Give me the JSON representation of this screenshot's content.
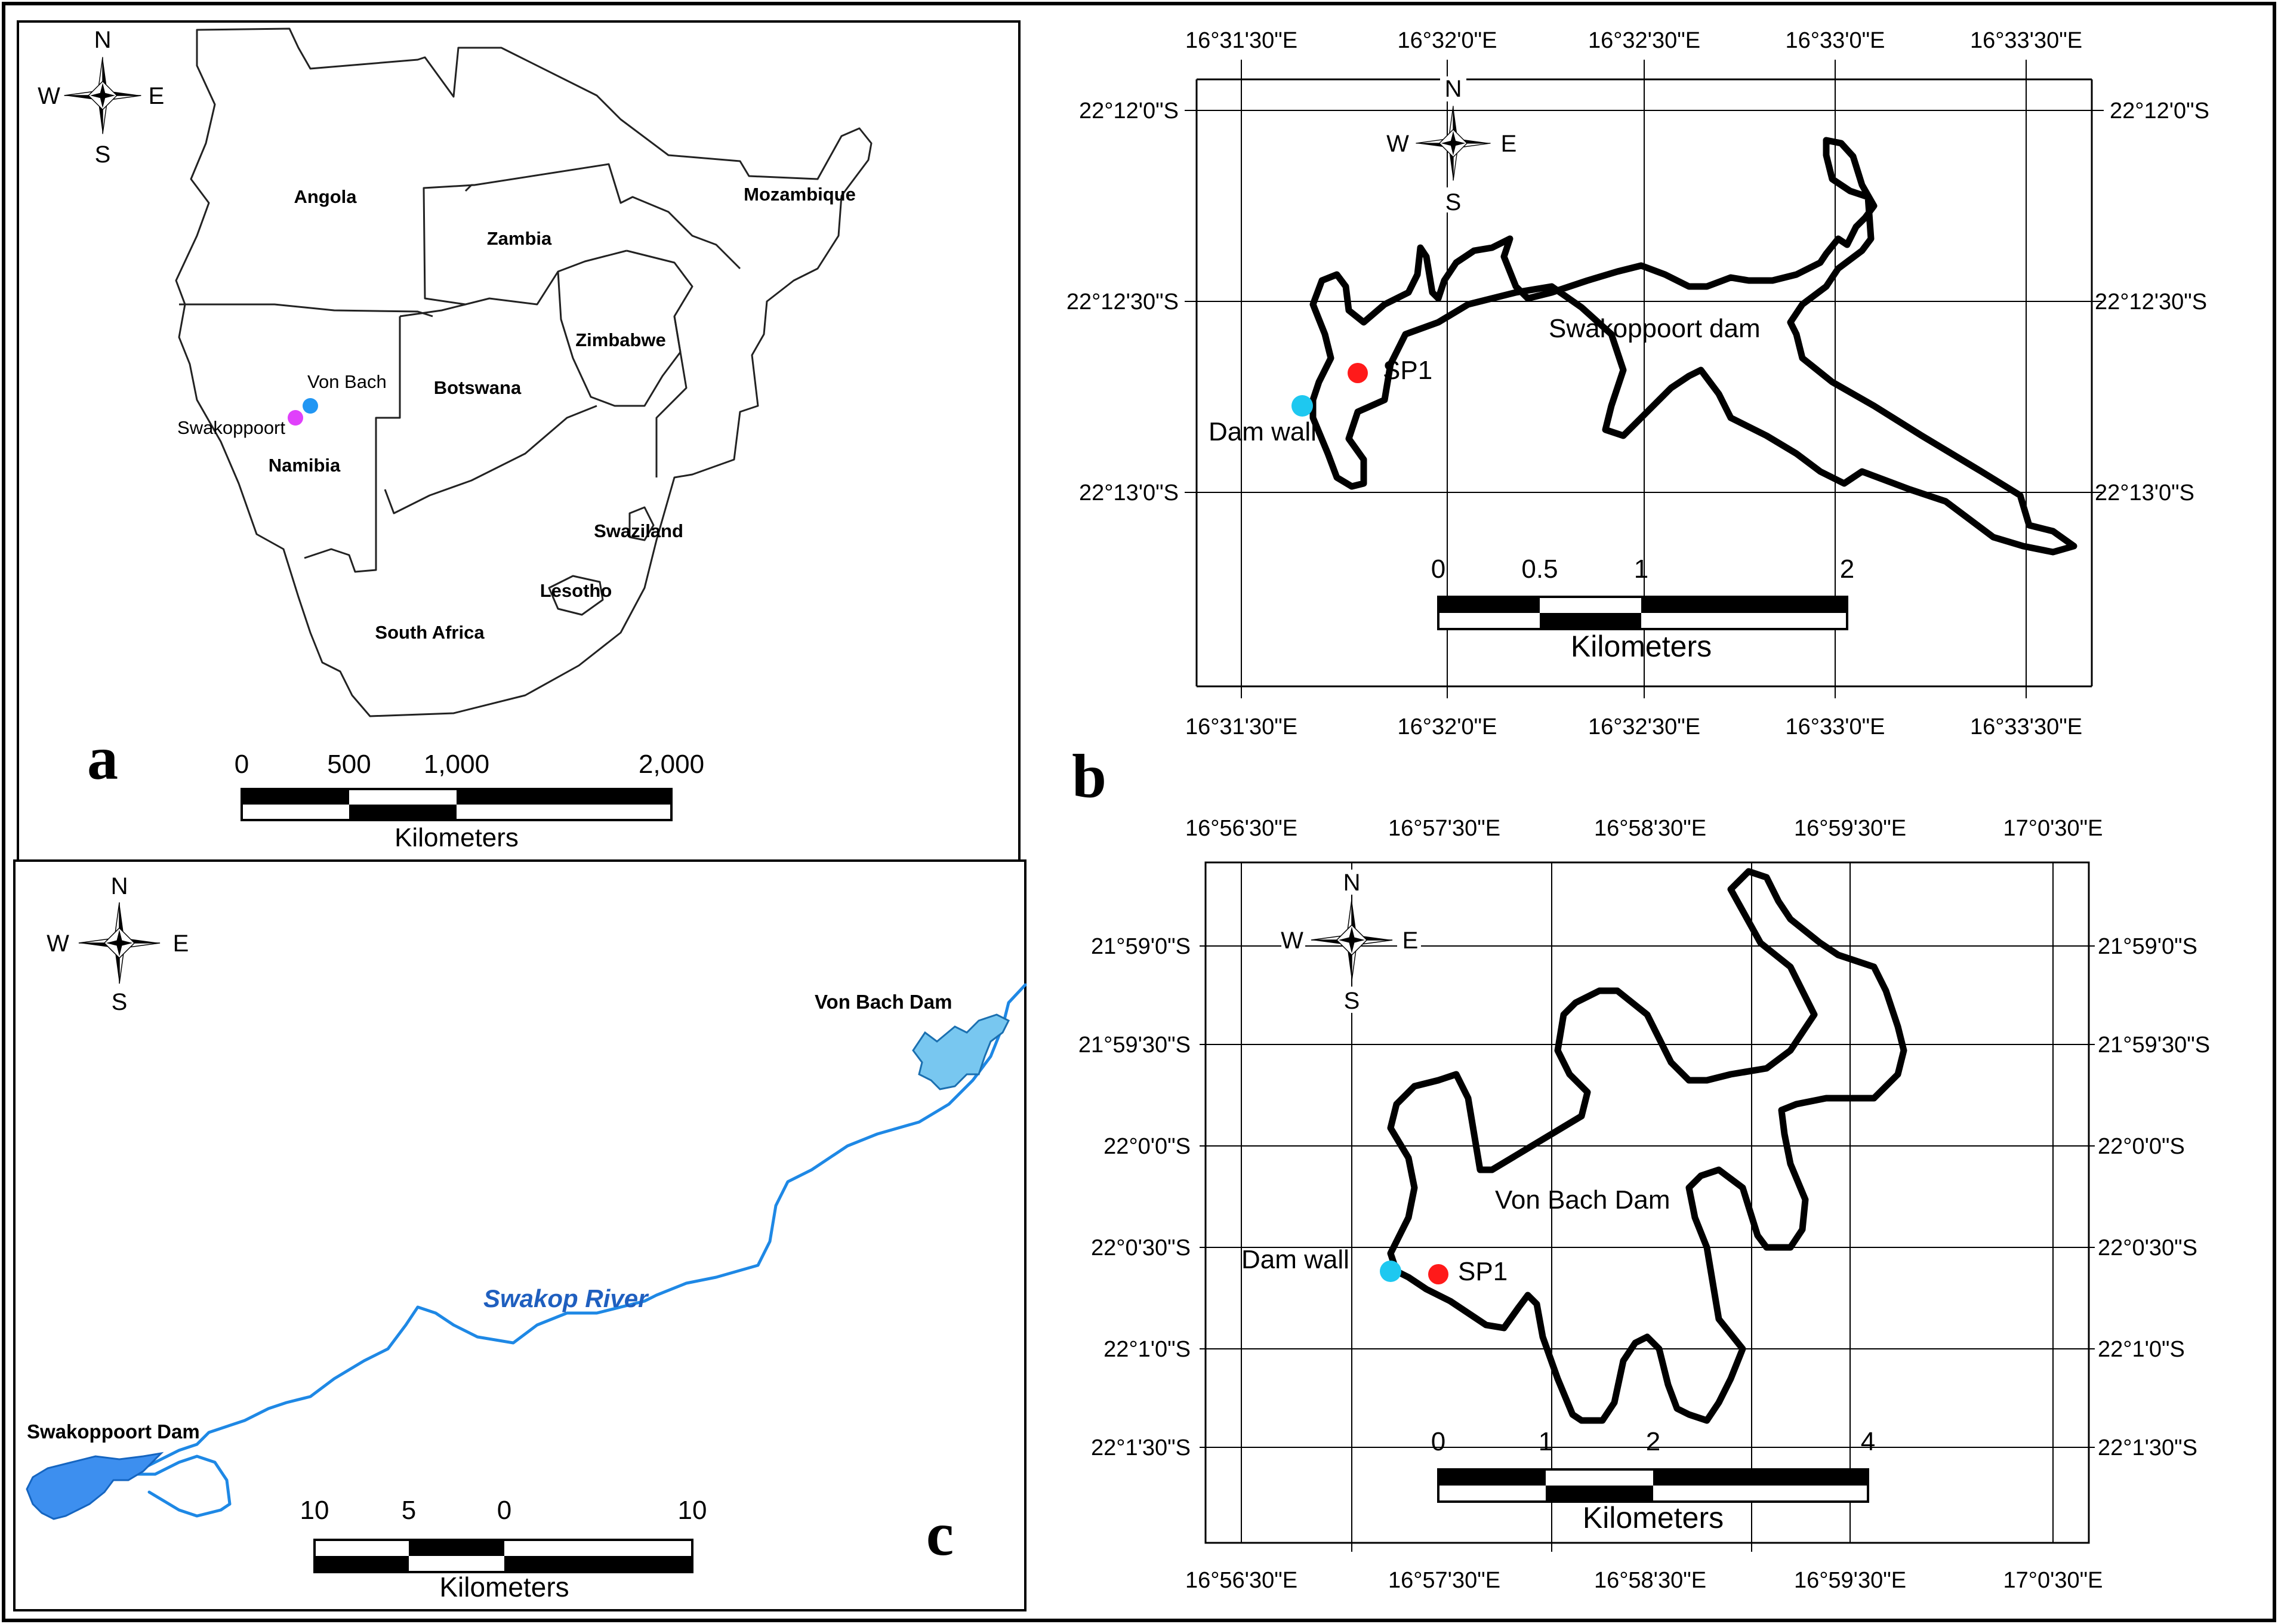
{
  "colors": {
    "site_marker": "#ff1a1a",
    "dam_wall_marker": "#1ec8f0",
    "von_bach_marker": "#2196f3",
    "swakoppoort_marker": "#e040fb",
    "river": "#1e88e5",
    "river_label": "#1f5fbf",
    "reservoir": "#3d8fef",
    "reservoir_light": "#78c7f0"
  },
  "compass": {
    "n": "N",
    "s": "S",
    "e": "E",
    "w": "W",
    "icon": "compass-rose-icon"
  },
  "panels": {
    "a": {
      "letter": "a",
      "countries": [
        "Angola",
        "Zambia",
        "Mozambique",
        "Zimbabwe",
        "Botswana",
        "Namibia",
        "Swaziland",
        "Lesotho",
        "South Africa"
      ],
      "points": {
        "von_bach": "Von Bach",
        "swakoppoort": "Swakoppoort"
      },
      "scale": {
        "ticks": [
          "0",
          "500",
          "1,000",
          "2,000"
        ],
        "unit": "Kilometers"
      }
    },
    "b": {
      "letter": "b",
      "lon_labels": [
        "16°31'30\"E",
        "16°32'0\"E",
        "16°32'30\"E",
        "16°33'0\"E",
        "16°33'30\"E"
      ],
      "lat_labels": [
        "22°12'0\"S",
        "22°12'30\"S",
        "22°13'0\"S"
      ],
      "dam_name": "Swakoppoort dam",
      "site": "SP1",
      "dam_wall": "Dam wall",
      "scale": {
        "ticks": [
          "0",
          "0.5",
          "1",
          "2"
        ],
        "unit": "Kilometers"
      }
    },
    "c": {
      "letter": "c",
      "river": "Swakop River",
      "upstream_dam": "Von Bach Dam",
      "downstream_dam": "Swakoppoort Dam",
      "scale": {
        "ticks": [
          "10",
          "5",
          "0",
          "10"
        ],
        "unit": "Kilometers"
      }
    },
    "d": {
      "lon_labels": [
        "16°56'30\"E",
        "16°57'30\"E",
        "16°58'30\"E",
        "16°59'30\"E",
        "17°0'30\"E"
      ],
      "lat_labels": [
        "21°59'0\"S",
        "21°59'30\"S",
        "22°0'0\"S",
        "22°0'30\"S",
        "22°1'0\"S",
        "22°1'30\"S"
      ],
      "dam_name": "Von Bach Dam",
      "site": "SP1",
      "dam_wall": "Dam wall",
      "scale": {
        "ticks": [
          "0",
          "1",
          "2",
          "4"
        ],
        "unit": "Kilometers"
      }
    }
  }
}
